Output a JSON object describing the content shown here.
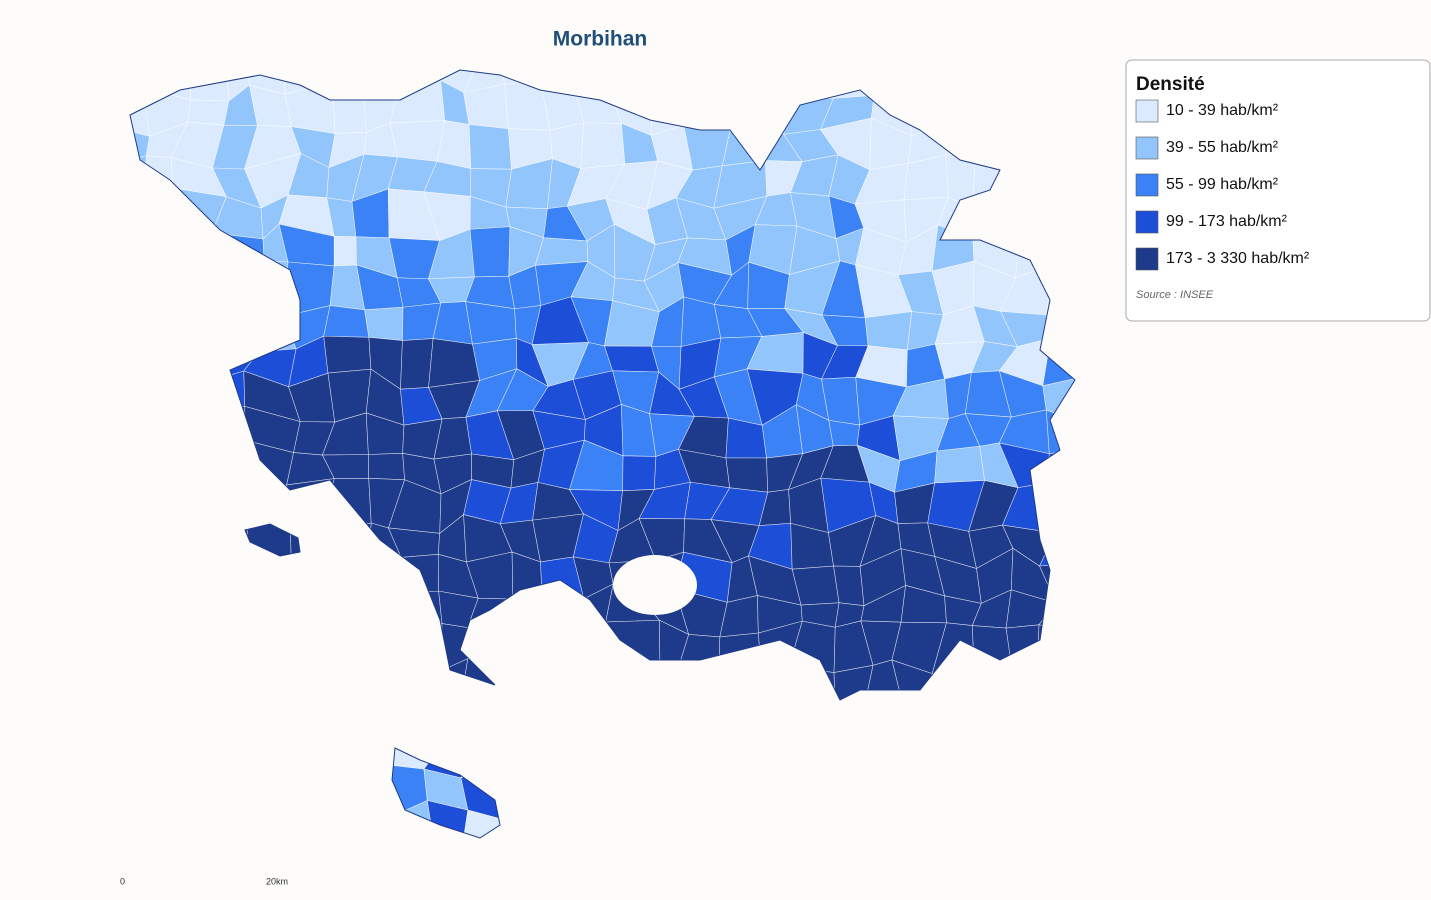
{
  "title": "Morbihan",
  "legend": {
    "title": "Densité",
    "items": [
      {
        "label": "10 - 39 hab/km²",
        "color": "#dbeafe"
      },
      {
        "label": "39 - 55 hab/km²",
        "color": "#93c5fd"
      },
      {
        "label": "55 - 99 hab/km²",
        "color": "#3b82f6"
      },
      {
        "label": "99 - 173 hab/km²",
        "color": "#1d4ed8"
      },
      {
        "label": "173 - 3 330 hab/km²",
        "color": "#1e3a8a"
      }
    ],
    "source": "Source : INSEE"
  },
  "scale": {
    "start": "0",
    "end": "20km"
  }
}
